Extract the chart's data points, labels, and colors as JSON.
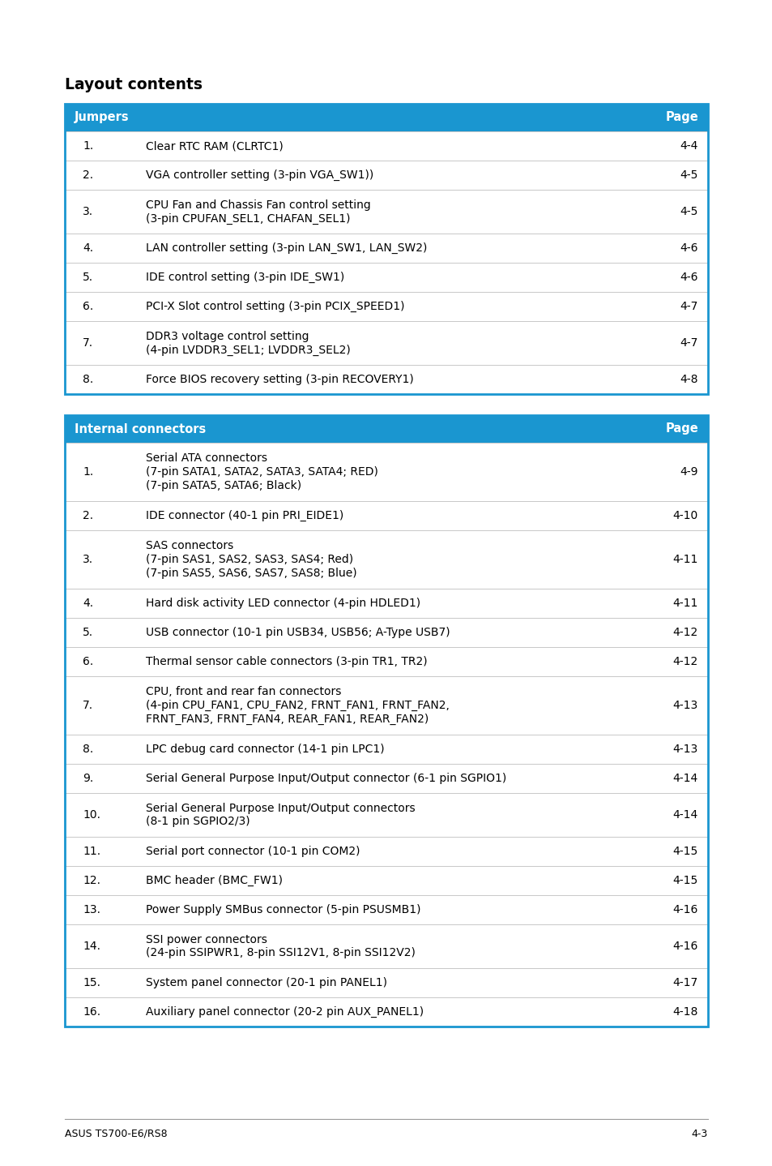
{
  "title": "Layout contents",
  "header_color": "#1a96d0",
  "header_text_color": "#ffffff",
  "border_color": "#1a96d0",
  "divider_color": "#c8c8c8",
  "text_color": "#000000",
  "page_footer_left": "ASUS TS700-E6/RS8",
  "page_footer_right": "4-3",
  "table1_header": [
    "Jumpers",
    "Page"
  ],
  "table1_rows": [
    [
      "1.",
      "Clear RTC RAM (CLRTC1)",
      "4-4"
    ],
    [
      "2.",
      "VGA controller setting (3-pin VGA_SW1))",
      "4-5"
    ],
    [
      "3.",
      "CPU Fan and Chassis Fan control setting\n(3-pin CPUFAN_SEL1, CHAFAN_SEL1)",
      "4-5"
    ],
    [
      "4.",
      "LAN controller setting (3-pin LAN_SW1, LAN_SW2)",
      "4-6"
    ],
    [
      "5.",
      "IDE control setting (3-pin IDE_SW1)",
      "4-6"
    ],
    [
      "6.",
      "PCI-X Slot control setting (3-pin PCIX_SPEED1)",
      "4-7"
    ],
    [
      "7.",
      "DDR3 voltage control setting\n(4-pin LVDDR3_SEL1; LVDDR3_SEL2)",
      "4-7"
    ],
    [
      "8.",
      "Force BIOS recovery setting (3-pin RECOVERY1)",
      "4-8"
    ]
  ],
  "table2_header": [
    "Internal connectors",
    "Page"
  ],
  "table2_rows": [
    [
      "1.",
      "Serial ATA connectors\n(7-pin SATA1, SATA2, SATA3, SATA4; RED)\n(7-pin SATA5, SATA6; Black)",
      "4-9"
    ],
    [
      "2.",
      "IDE connector (40-1 pin PRI_EIDE1)",
      "4-10"
    ],
    [
      "3.",
      "SAS connectors\n(7-pin SAS1, SAS2, SAS3, SAS4; Red)\n(7-pin SAS5, SAS6, SAS7, SAS8; Blue)",
      "4-11"
    ],
    [
      "4.",
      "Hard disk activity LED connector (4-pin HDLED1)",
      "4-11"
    ],
    [
      "5.",
      "USB connector (10-1 pin USB34, USB56; A-Type USB7)",
      "4-12"
    ],
    [
      "6.",
      "Thermal sensor cable connectors (3-pin TR1, TR2)",
      "4-12"
    ],
    [
      "7.",
      "CPU, front and rear fan connectors\n(4-pin CPU_FAN1, CPU_FAN2, FRNT_FAN1, FRNT_FAN2,\nFRNT_FAN3, FRNT_FAN4, REAR_FAN1, REAR_FAN2)",
      "4-13"
    ],
    [
      "8.",
      "LPC debug card connector (14-1 pin LPC1)",
      "4-13"
    ],
    [
      "9.",
      "Serial General Purpose Input/Output connector (6-1 pin SGPIO1)",
      "4-14"
    ],
    [
      "10.",
      "Serial General Purpose Input/Output connectors\n(8-1 pin SGPIO2/3)",
      "4-14"
    ],
    [
      "11.",
      "Serial port connector (10-1 pin COM2)",
      "4-15"
    ],
    [
      "12.",
      "BMC header (BMC_FW1)",
      "4-15"
    ],
    [
      "13.",
      "Power Supply SMBus connector (5-pin PSUSMB1)",
      "4-16"
    ],
    [
      "14.",
      "SSI power connectors\n(24-pin SSIPWR1, 8-pin SSI12V1, 8-pin SSI12V2)",
      "4-16"
    ],
    [
      "15.",
      "System panel connector (20-1 pin PANEL1)",
      "4-17"
    ],
    [
      "16.",
      "Auxiliary panel connector (20-2 pin AUX_PANEL1)",
      "4-18"
    ]
  ]
}
